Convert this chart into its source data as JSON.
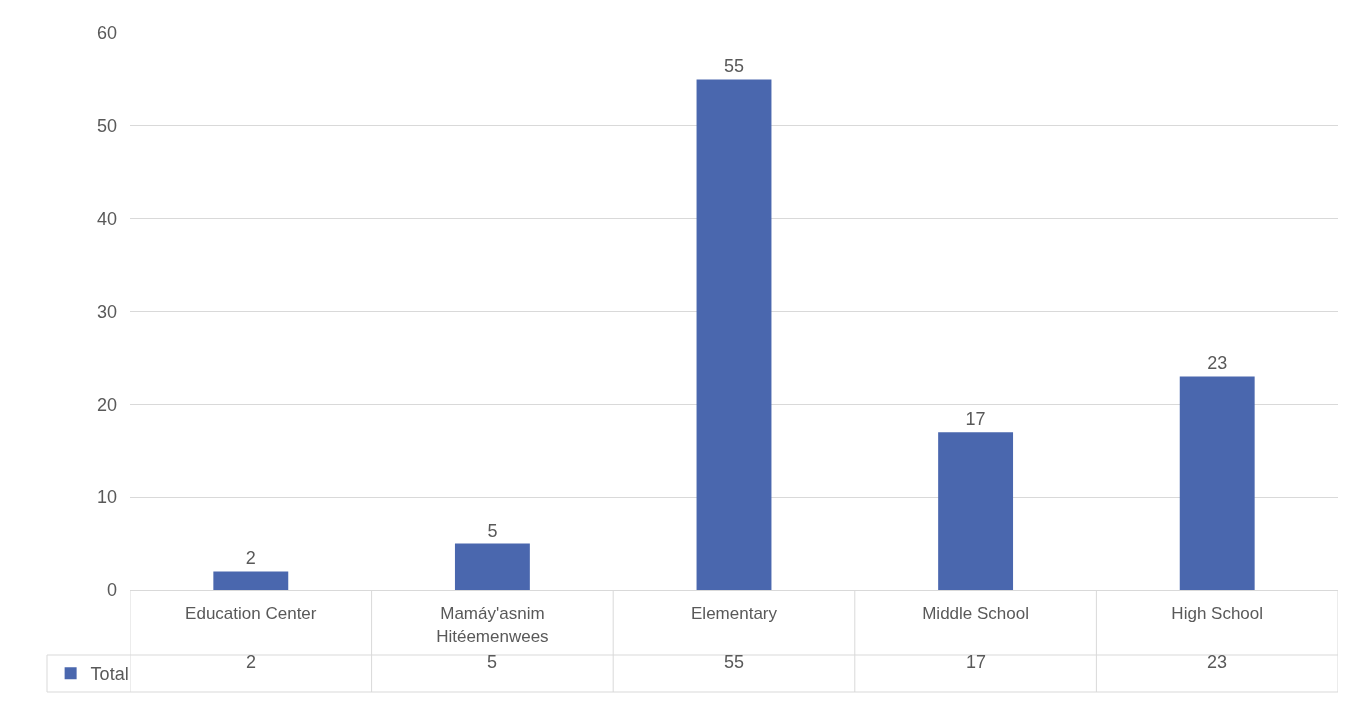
{
  "chart_data": {
    "type": "bar",
    "categories": [
      "Education Center",
      "Mamáy'asnim Hitéemenwees",
      "Elementary",
      "Middle School",
      "High School"
    ],
    "series": [
      {
        "name": "Total",
        "color": "#4a67ae",
        "values": [
          2,
          5,
          55,
          17,
          23
        ],
        "value_labels": [
          "2",
          "5",
          "55",
          "17",
          "23"
        ]
      }
    ],
    "ylim": [
      0,
      60
    ],
    "yticks": [
      0,
      10,
      20,
      30,
      40,
      50,
      60
    ],
    "grid": "y",
    "data_labels": true,
    "legend": "bottom left",
    "annotations": [
      "2",
      "5",
      "55",
      "17",
      "23"
    ]
  }
}
